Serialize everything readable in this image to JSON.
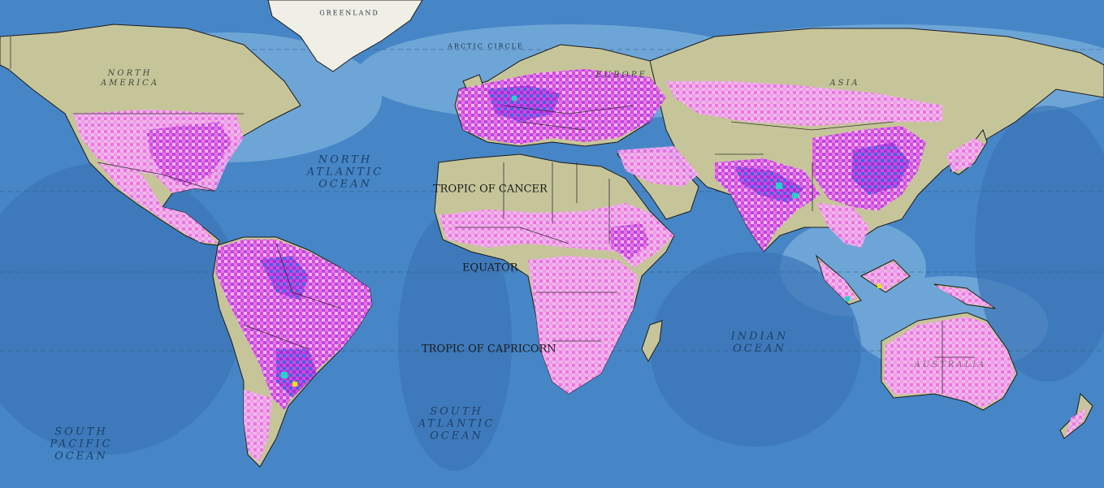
{
  "colors": {
    "ocean_deep": "#3f7fc1",
    "ocean_shelf": "#8fc0e6",
    "land": "#c6c59a",
    "land_north": "#b9c08f",
    "greenland": "#f0efe6",
    "border": "#1a1a1a",
    "value_low": "#f7b5f2",
    "value_mid": "#f06ee8",
    "value_high": "#d73ee6",
    "value_very_high": "#8a2be2",
    "value_extreme": "#2f5ee8",
    "value_peak": "#22d3c5"
  },
  "labels": {
    "greenland": "GREENLAND",
    "arctic_circle": "ARCTIC CIRCLE",
    "north_america": "NORTH\nAMERICA",
    "europe": "EUROPE",
    "asia": "ASIA",
    "north_atlantic": "NORTH\nATLANTIC\nOCEAN",
    "tropic_cancer": "TROPIC OF CANCER",
    "equator": "EQUATOR",
    "tropic_capricorn": "TROPIC OF CAPRICORN",
    "indian_ocean": "INDIAN\nOCEAN",
    "south_atlantic": "SOUTH\nATLANTIC\nOCEAN",
    "south_pacific": "SOUTH\nPACIFIC\nOCEAN",
    "australia": "AUSTRALIA"
  }
}
